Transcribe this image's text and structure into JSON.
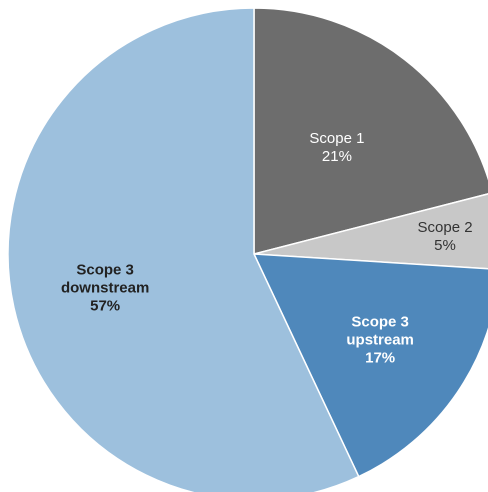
{
  "chart_data": {
    "type": "pie",
    "title": "",
    "start_angle_deg": 0,
    "direction": "clockwise",
    "slices": [
      {
        "label_lines": [
          "Scope 1",
          "21%"
        ],
        "value": 21,
        "color": "#6d6d6d",
        "text_color": "#ffffff",
        "bold": false
      },
      {
        "label_lines": [
          "Scope 2",
          "5%"
        ],
        "value": 5,
        "color": "#c8c8c8",
        "text_color": "#333333",
        "bold": false
      },
      {
        "label_lines": [
          "Scope 3",
          "upstream",
          "17%"
        ],
        "value": 17,
        "color": "#4f88bb",
        "text_color": "#ffffff",
        "bold": true
      },
      {
        "label_lines": [
          "Scope 3",
          "downstream",
          "57%"
        ],
        "value": 57,
        "color": "#9dc0dd",
        "text_color": "#222222",
        "bold": true
      }
    ]
  }
}
